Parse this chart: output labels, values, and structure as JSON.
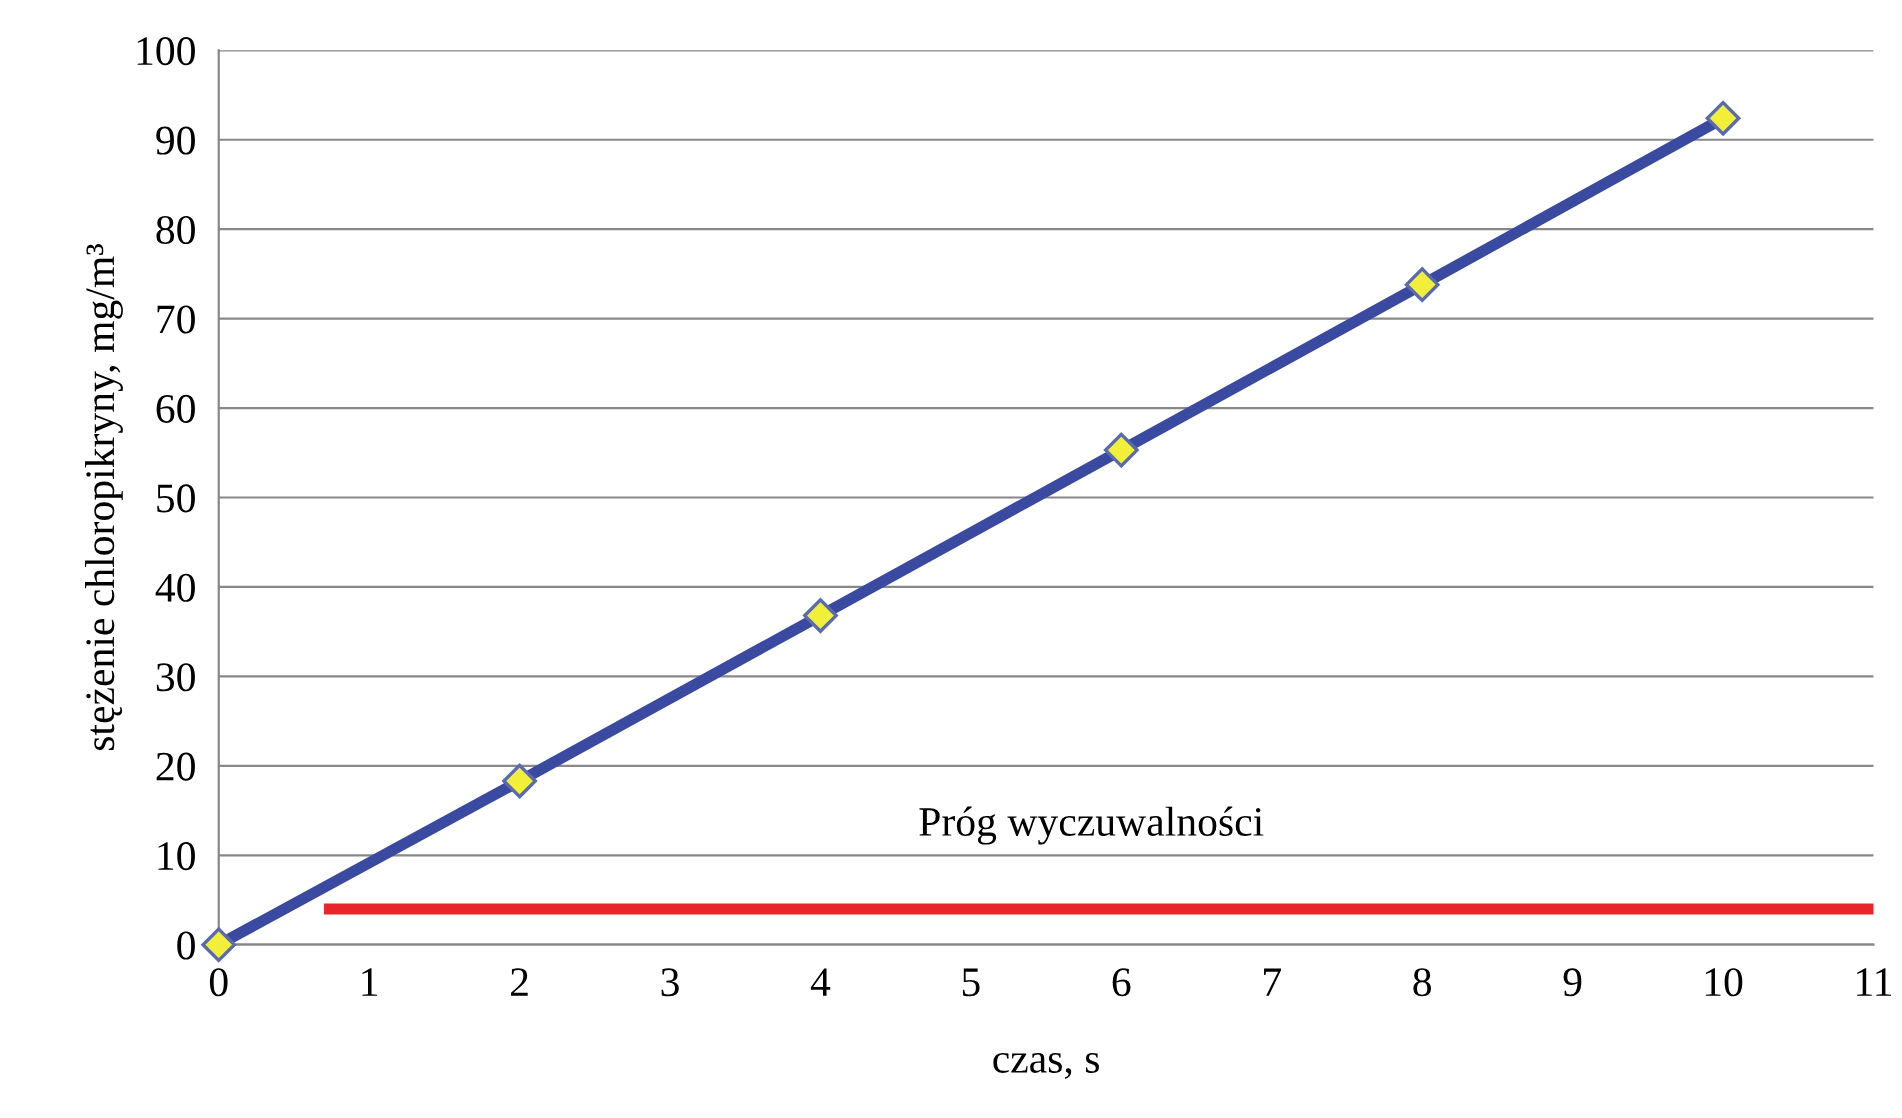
{
  "chart_data": {
    "type": "line",
    "xlabel": "czas, s",
    "ylabel": "stężenie chloropikryny, mg/m³",
    "series": [
      {
        "color": "#3a4aa0",
        "marker": "diamond",
        "x": [
          0,
          2,
          4,
          6,
          8,
          10
        ],
        "values": [
          0,
          18.3,
          36.8,
          55.3,
          73.8,
          92.4
        ]
      },
      {
        "color": "#e8252a",
        "marker": "none",
        "x": [
          0.7,
          11
        ],
        "values": [
          4,
          4
        ]
      }
    ],
    "annotations": [
      {
        "text": "Próg wyczuwalności",
        "x": 5.8,
        "y": 4
      }
    ],
    "xlim": [
      0,
      11
    ],
    "xticks": [
      0,
      1,
      2,
      3,
      4,
      5,
      6,
      7,
      8,
      9,
      10,
      11
    ],
    "ylim": [
      0,
      100
    ],
    "yticks": [
      0,
      10,
      20,
      30,
      40,
      50,
      60,
      70,
      80,
      90,
      100
    ],
    "grid": "y",
    "legend": false
  }
}
